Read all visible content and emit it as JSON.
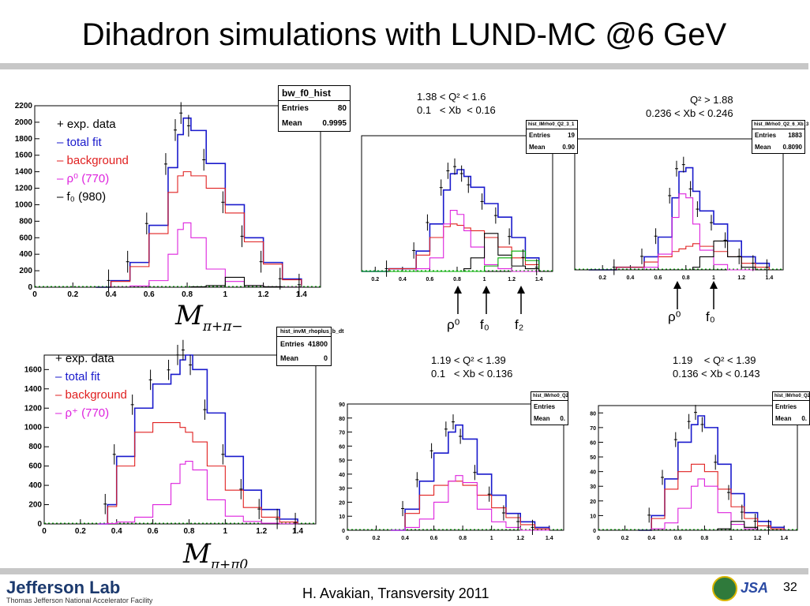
{
  "slide": {
    "title": "Dihadron simulations with LUND-MC @6 GeV",
    "footer": "H. Avakian, Transversity 2011",
    "page_number": "32",
    "logo_text": "Jefferson Lab",
    "logo_subtext": "Thomas Jefferson National Accelerator Facility",
    "logo2_text": "JSA"
  },
  "colors": {
    "data": "#000000",
    "total_fit": "#1a1acc",
    "background": "#e02020",
    "rho": "#dd22dd",
    "f0": "#000000",
    "f2": "#00aa00"
  },
  "legends": {
    "top_left": [
      "+ exp. data",
      "– total fit",
      "– background",
      "– ρ⁰ (770)",
      "– f₀ (980)"
    ],
    "bottom_left": [
      "+ exp. data",
      "– total fit",
      "– background",
      "– ρ⁺ (770)"
    ]
  },
  "mass_labels": {
    "top": "M",
    "top_sub": "π+π−",
    "bottom": "M",
    "bottom_sub": "π+π0"
  },
  "arrows": {
    "top_mid": [
      "ρ⁰",
      "f₀",
      "f₂"
    ],
    "top_right": [
      "ρ⁰",
      "f₀"
    ]
  },
  "cuts": {
    "top_mid": "1.38 < Q² < 1.6\n0.1   < Xb  < 0.16",
    "top_right": "Q² > 1.88\n0.236 < Xb < 0.246",
    "bot_mid": "1.19 < Q² < 1.39\n0.1   < Xb < 0.136",
    "bot_right": "1.19    < Q² < 1.39\n0.136 < Xb < 0.143"
  },
  "statboxes": {
    "top_left": {
      "name": "bw_f0_hist",
      "entries_label": "Entries",
      "entries": "80",
      "mean_label": "Mean",
      "mean": "0.9995"
    },
    "top_mid": {
      "name": "hist_IMrho0_Q2_3_1",
      "entries_label": "Entries",
      "entries": "19",
      "mean_label": "Mean",
      "mean": "0.90"
    },
    "top_right": {
      "name": "hist_IMrho0_Q2_6_Xb_3",
      "entries_label": "Entries",
      "entries": "1883",
      "mean_label": "Mean",
      "mean": "0.8090"
    },
    "bot_left": {
      "name": "hist_invM_rhoplus_b_dt",
      "entries_label": "Entries",
      "entries": "41800",
      "mean_label": "Mean",
      "mean": "0"
    },
    "bot_mid": {
      "name": "hist_IMrho0_Q2",
      "entries_label": "Entries",
      "entries": "",
      "mean_label": "Mean",
      "mean": "0."
    },
    "bot_right": {
      "name": "hist_IMrho0_Q2",
      "entries_label": "Entries",
      "entries": "",
      "mean_label": "Mean",
      "mean": "0."
    }
  },
  "chart_data": [
    {
      "id": "top_left",
      "type": "line",
      "xlim": [
        0,
        1.5
      ],
      "ylim": [
        0,
        2200
      ],
      "xticks": [
        "0",
        "0.2",
        "0.4",
        "0.6",
        "0.8",
        "1",
        "1.2",
        "1.4"
      ],
      "yticks": [
        "0",
        "200",
        "400",
        "600",
        "800",
        "1000",
        "1200",
        "1400",
        "1600",
        "1800",
        "2000",
        "2200"
      ],
      "x": [
        0.32,
        0.4,
        0.5,
        0.6,
        0.7,
        0.75,
        0.78,
        0.82,
        0.9,
        1.0,
        1.1,
        1.2,
        1.3,
        1.4
      ],
      "series": [
        {
          "name": "total fit",
          "values": [
            0,
            80,
            300,
            750,
            1450,
            1850,
            2050,
            1900,
            1500,
            1000,
            600,
            300,
            100,
            30
          ]
        },
        {
          "name": "background",
          "values": [
            0,
            70,
            250,
            650,
            1150,
            1350,
            1400,
            1350,
            1200,
            900,
            550,
            280,
            90,
            25
          ]
        },
        {
          "name": "rho0 (770)",
          "values": [
            0,
            2,
            15,
            80,
            400,
            700,
            780,
            600,
            220,
            70,
            20,
            5,
            2,
            0
          ]
        },
        {
          "name": "f0 (980)",
          "values": [
            0,
            0,
            0,
            0,
            0,
            0,
            0,
            5,
            20,
            120,
            20,
            5,
            0,
            0
          ]
        }
      ]
    },
    {
      "id": "top_mid",
      "type": "line",
      "xlim": [
        0.1,
        1.5
      ],
      "ylim": [
        0,
        1
      ],
      "xticks": [
        "0.2",
        "0.4",
        "0.6",
        "0.8",
        "1",
        "1.2",
        "1.4"
      ],
      "x": [
        0.1,
        0.3,
        0.5,
        0.6,
        0.7,
        0.75,
        0.8,
        0.85,
        0.9,
        1.0,
        1.1,
        1.2,
        1.3,
        1.4
      ],
      "series": [
        {
          "name": "total fit",
          "values": [
            0,
            0.02,
            0.15,
            0.35,
            0.6,
            0.72,
            0.75,
            0.7,
            0.62,
            0.5,
            0.4,
            0.25,
            0.1,
            0.03
          ]
        },
        {
          "name": "background",
          "values": [
            0,
            0.02,
            0.12,
            0.25,
            0.33,
            0.35,
            0.34,
            0.32,
            0.3,
            0.25,
            0.18,
            0.1,
            0.05,
            0.02
          ]
        },
        {
          "name": "rho0",
          "values": [
            0,
            0,
            0.02,
            0.1,
            0.35,
            0.45,
            0.42,
            0.3,
            0.18,
            0.05,
            0.02,
            0,
            0,
            0
          ]
        },
        {
          "name": "f0",
          "values": [
            0,
            0,
            0,
            0,
            0,
            0,
            0,
            0.02,
            0.1,
            0.28,
            0.12,
            0.04,
            0.02,
            0
          ]
        },
        {
          "name": "f2",
          "values": [
            0,
            0,
            0,
            0,
            0,
            0,
            0,
            0,
            0,
            0.04,
            0.1,
            0.15,
            0.08,
            0.02
          ]
        }
      ]
    },
    {
      "id": "top_right",
      "type": "line",
      "xlim": [
        0,
        1.5
      ],
      "ylim": [
        0,
        1
      ],
      "xticks": [
        "0.2",
        "0.4",
        "0.6",
        "0.8",
        "1",
        "1.2",
        "1.4"
      ],
      "x": [
        0.1,
        0.3,
        0.5,
        0.6,
        0.7,
        0.75,
        0.8,
        0.85,
        0.9,
        1.0,
        1.1,
        1.2,
        1.3,
        1.4
      ],
      "series": [
        {
          "name": "total fit",
          "values": [
            0,
            0.02,
            0.1,
            0.25,
            0.55,
            0.75,
            0.78,
            0.6,
            0.45,
            0.35,
            0.22,
            0.1,
            0.05,
            0.02
          ]
        },
        {
          "name": "background",
          "values": [
            0,
            0.02,
            0.06,
            0.1,
            0.14,
            0.16,
            0.18,
            0.2,
            0.18,
            0.14,
            0.1,
            0.05,
            0.02,
            0
          ]
        },
        {
          "name": "rho0",
          "values": [
            0,
            0,
            0.02,
            0.12,
            0.4,
            0.58,
            0.55,
            0.35,
            0.15,
            0.04,
            0,
            0,
            0,
            0
          ]
        },
        {
          "name": "f0",
          "values": [
            0,
            0,
            0,
            0,
            0,
            0,
            0,
            0.02,
            0.1,
            0.22,
            0.1,
            0.02,
            0,
            0
          ]
        }
      ]
    },
    {
      "id": "bot_left",
      "type": "line",
      "xlim": [
        0,
        1.5
      ],
      "ylim": [
        0,
        1750
      ],
      "xticks": [
        "0",
        "0.2",
        "0.4",
        "0.6",
        "0.8",
        "1",
        "1.2",
        "1.4"
      ],
      "yticks": [
        "0",
        "200",
        "400",
        "600",
        "800",
        "1000",
        "1200",
        "1400",
        "1600"
      ],
      "x": [
        0.3,
        0.35,
        0.4,
        0.5,
        0.6,
        0.7,
        0.75,
        0.78,
        0.82,
        0.9,
        1.0,
        1.1,
        1.2,
        1.3,
        1.4
      ],
      "series": [
        {
          "name": "total fit",
          "values": [
            0,
            200,
            700,
            1200,
            1450,
            1550,
            1700,
            1750,
            1600,
            1150,
            700,
            350,
            150,
            50,
            10
          ]
        },
        {
          "name": "background",
          "values": [
            0,
            180,
            600,
            950,
            1050,
            1050,
            1000,
            950,
            850,
            600,
            350,
            170,
            70,
            20,
            5
          ]
        },
        {
          "name": "rho+ (770)",
          "values": [
            0,
            5,
            20,
            70,
            200,
            420,
            620,
            650,
            560,
            250,
            80,
            25,
            8,
            2,
            0
          ]
        }
      ]
    },
    {
      "id": "bot_mid",
      "type": "line",
      "xlim": [
        0,
        1.5
      ],
      "ylim": [
        0,
        90
      ],
      "xticks": [
        "0",
        "0.2",
        "0.4",
        "0.6",
        "0.8",
        "1",
        "1.2",
        "1.4"
      ],
      "yticks": [
        "0",
        "10",
        "20",
        "30",
        "40",
        "50",
        "60",
        "70",
        "80",
        "90"
      ],
      "x": [
        0.3,
        0.4,
        0.5,
        0.6,
        0.7,
        0.75,
        0.8,
        0.9,
        1.0,
        1.1,
        1.2,
        1.3,
        1.4
      ],
      "series": [
        {
          "name": "total fit",
          "values": [
            0,
            15,
            35,
            55,
            70,
            75,
            65,
            40,
            25,
            12,
            6,
            2,
            0
          ]
        },
        {
          "name": "background",
          "values": [
            0,
            12,
            25,
            32,
            35,
            35,
            32,
            25,
            16,
            9,
            4,
            1,
            0
          ]
        },
        {
          "name": "rho",
          "values": [
            0,
            2,
            8,
            20,
            35,
            39,
            34,
            15,
            6,
            2,
            0,
            0,
            0
          ]
        }
      ]
    },
    {
      "id": "bot_right",
      "type": "line",
      "xlim": [
        0,
        1.5
      ],
      "ylim": [
        0,
        85
      ],
      "xticks": [
        "0",
        "0.2",
        "0.4",
        "0.6",
        "0.8",
        "1",
        "1.2",
        "1.4"
      ],
      "yticks": [
        "0",
        "10",
        "20",
        "30",
        "40",
        "50",
        "60",
        "70",
        "80"
      ],
      "x": [
        0.3,
        0.4,
        0.5,
        0.6,
        0.7,
        0.75,
        0.8,
        0.9,
        1.0,
        1.1,
        1.2,
        1.3,
        1.4
      ],
      "series": [
        {
          "name": "total fit",
          "values": [
            0,
            10,
            35,
            60,
            72,
            78,
            70,
            45,
            25,
            12,
            6,
            2,
            0
          ]
        },
        {
          "name": "background",
          "values": [
            0,
            8,
            28,
            40,
            45,
            45,
            40,
            28,
            16,
            8,
            3,
            1,
            0
          ]
        },
        {
          "name": "rho",
          "values": [
            0,
            1,
            5,
            15,
            30,
            35,
            30,
            12,
            4,
            1,
            0,
            0,
            0
          ]
        },
        {
          "name": "f0",
          "values": [
            0,
            0,
            0,
            0,
            0,
            0,
            0,
            1,
            6,
            2,
            0,
            0,
            0
          ]
        }
      ]
    }
  ]
}
